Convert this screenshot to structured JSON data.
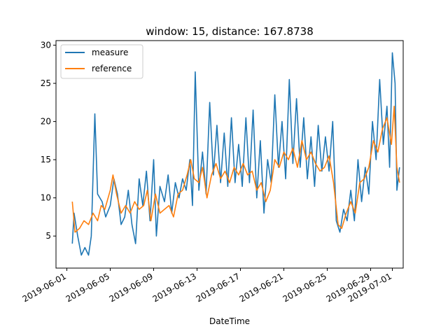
{
  "chart_data": {
    "type": "line",
    "title": "window: 15, distance: 167.8738",
    "xlabel": "DateTime",
    "ylabel": "",
    "x_range": [
      "2019-05-31",
      "2019-07-02"
    ],
    "ylim": [
      0.8,
      30.6
    ],
    "grid": false,
    "legend_position": "top-left",
    "x_ticks": [
      "2019-06-01",
      "2019-06-05",
      "2019-06-09",
      "2019-06-13",
      "2019-06-17",
      "2019-06-21",
      "2019-06-25",
      "2019-06-29",
      "2019-07-01"
    ],
    "y_ticks": [
      5,
      10,
      15,
      20,
      25,
      30
    ],
    "series": [
      {
        "name": "measure",
        "color": "#1f77b4",
        "points": [
          [
            "2019-06-01T12:00",
            4.0
          ],
          [
            "2019-06-01T16:00",
            8.0
          ],
          [
            "2019-06-02T00:00",
            5.0
          ],
          [
            "2019-06-02T08:00",
            2.5
          ],
          [
            "2019-06-02T16:00",
            3.5
          ],
          [
            "2019-06-03T00:00",
            2.5
          ],
          [
            "2019-06-03T06:00",
            5.0
          ],
          [
            "2019-06-03T14:00",
            21.0
          ],
          [
            "2019-06-03T20:00",
            10.5
          ],
          [
            "2019-06-04T06:00",
            9.5
          ],
          [
            "2019-06-04T14:00",
            7.5
          ],
          [
            "2019-06-05T00:00",
            9.0
          ],
          [
            "2019-06-05T08:00",
            12.5
          ],
          [
            "2019-06-05T16:00",
            10.5
          ],
          [
            "2019-06-06T00:00",
            6.5
          ],
          [
            "2019-06-06T08:00",
            7.5
          ],
          [
            "2019-06-06T16:00",
            11.0
          ],
          [
            "2019-06-07T00:00",
            6.5
          ],
          [
            "2019-06-07T08:00",
            4.0
          ],
          [
            "2019-06-07T16:00",
            12.5
          ],
          [
            "2019-06-08T00:00",
            9.0
          ],
          [
            "2019-06-08T08:00",
            13.5
          ],
          [
            "2019-06-08T16:00",
            7.0
          ],
          [
            "2019-06-09T00:00",
            15.0
          ],
          [
            "2019-06-09T06:00",
            5.0
          ],
          [
            "2019-06-09T14:00",
            11.5
          ],
          [
            "2019-06-10T00:00",
            9.5
          ],
          [
            "2019-06-10T08:00",
            13.0
          ],
          [
            "2019-06-10T16:00",
            8.0
          ],
          [
            "2019-06-11T00:00",
            12.0
          ],
          [
            "2019-06-11T08:00",
            10.0
          ],
          [
            "2019-06-11T16:00",
            12.5
          ],
          [
            "2019-06-12T00:00",
            11.0
          ],
          [
            "2019-06-12T08:00",
            15.0
          ],
          [
            "2019-06-12T14:00",
            9.0
          ],
          [
            "2019-06-12T20:00",
            26.5
          ],
          [
            "2019-06-13T04:00",
            11.0
          ],
          [
            "2019-06-13T12:00",
            16.0
          ],
          [
            "2019-06-13T20:00",
            10.5
          ],
          [
            "2019-06-14T04:00",
            22.5
          ],
          [
            "2019-06-14T12:00",
            13.0
          ],
          [
            "2019-06-14T20:00",
            19.5
          ],
          [
            "2019-06-15T04:00",
            12.0
          ],
          [
            "2019-06-15T12:00",
            18.5
          ],
          [
            "2019-06-15T20:00",
            11.5
          ],
          [
            "2019-06-16T04:00",
            20.5
          ],
          [
            "2019-06-16T12:00",
            12.0
          ],
          [
            "2019-06-16T20:00",
            17.0
          ],
          [
            "2019-06-17T04:00",
            11.5
          ],
          [
            "2019-06-17T12:00",
            20.5
          ],
          [
            "2019-06-17T20:00",
            12.0
          ],
          [
            "2019-06-18T04:00",
            21.5
          ],
          [
            "2019-06-18T12:00",
            10.0
          ],
          [
            "2019-06-18T20:00",
            17.5
          ],
          [
            "2019-06-19T04:00",
            8.0
          ],
          [
            "2019-06-19T12:00",
            15.0
          ],
          [
            "2019-06-19T20:00",
            12.0
          ],
          [
            "2019-06-20T04:00",
            23.5
          ],
          [
            "2019-06-20T12:00",
            14.0
          ],
          [
            "2019-06-20T20:00",
            20.0
          ],
          [
            "2019-06-21T04:00",
            12.5
          ],
          [
            "2019-06-21T12:00",
            25.5
          ],
          [
            "2019-06-21T20:00",
            14.5
          ],
          [
            "2019-06-22T04:00",
            23.0
          ],
          [
            "2019-06-22T12:00",
            14.0
          ],
          [
            "2019-06-22T20:00",
            20.5
          ],
          [
            "2019-06-23T04:00",
            12.5
          ],
          [
            "2019-06-23T12:00",
            18.0
          ],
          [
            "2019-06-23T20:00",
            11.5
          ],
          [
            "2019-06-24T04:00",
            19.5
          ],
          [
            "2019-06-24T12:00",
            13.5
          ],
          [
            "2019-06-24T20:00",
            18.0
          ],
          [
            "2019-06-25T04:00",
            13.5
          ],
          [
            "2019-06-25T12:00",
            20.0
          ],
          [
            "2019-06-25T20:00",
            7.0
          ],
          [
            "2019-06-26T04:00",
            5.5
          ],
          [
            "2019-06-26T12:00",
            8.5
          ],
          [
            "2019-06-26T20:00",
            7.0
          ],
          [
            "2019-06-27T04:00",
            11.0
          ],
          [
            "2019-06-27T12:00",
            7.0
          ],
          [
            "2019-06-27T20:00",
            15.0
          ],
          [
            "2019-06-28T04:00",
            9.5
          ],
          [
            "2019-06-28T12:00",
            14.0
          ],
          [
            "2019-06-28T20:00",
            10.5
          ],
          [
            "2019-06-29T04:00",
            20.0
          ],
          [
            "2019-06-29T12:00",
            15.0
          ],
          [
            "2019-06-29T20:00",
            25.5
          ],
          [
            "2019-06-30T04:00",
            17.0
          ],
          [
            "2019-06-30T12:00",
            22.0
          ],
          [
            "2019-06-30T18:00",
            14.0
          ],
          [
            "2019-07-01T00:00",
            29.0
          ],
          [
            "2019-07-01T06:00",
            25.0
          ],
          [
            "2019-07-01T10:00",
            11.0
          ],
          [
            "2019-07-01T16:00",
            14.0
          ]
        ]
      },
      {
        "name": "reference",
        "color": "#ff7f0e",
        "points": [
          [
            "2019-06-01T12:00",
            9.5
          ],
          [
            "2019-06-01T18:00",
            5.5
          ],
          [
            "2019-06-02T04:00",
            6.0
          ],
          [
            "2019-06-02T14:00",
            7.0
          ],
          [
            "2019-06-03T00:00",
            6.5
          ],
          [
            "2019-06-03T10:00",
            8.0
          ],
          [
            "2019-06-03T20:00",
            7.0
          ],
          [
            "2019-06-04T04:00",
            9.0
          ],
          [
            "2019-06-04T12:00",
            8.5
          ],
          [
            "2019-06-05T00:00",
            11.0
          ],
          [
            "2019-06-05T06:00",
            13.0
          ],
          [
            "2019-06-05T14:00",
            10.5
          ],
          [
            "2019-06-06T00:00",
            8.0
          ],
          [
            "2019-06-06T10:00",
            9.0
          ],
          [
            "2019-06-06T20:00",
            8.0
          ],
          [
            "2019-06-07T06:00",
            9.5
          ],
          [
            "2019-06-07T16:00",
            8.5
          ],
          [
            "2019-06-08T02:00",
            9.0
          ],
          [
            "2019-06-08T10:00",
            11.0
          ],
          [
            "2019-06-08T18:00",
            7.0
          ],
          [
            "2019-06-09T04:00",
            10.5
          ],
          [
            "2019-06-09T14:00",
            8.0
          ],
          [
            "2019-06-10T00:00",
            8.5
          ],
          [
            "2019-06-10T10:00",
            9.0
          ],
          [
            "2019-06-10T20:00",
            7.5
          ],
          [
            "2019-06-11T06:00",
            10.5
          ],
          [
            "2019-06-11T16:00",
            11.0
          ],
          [
            "2019-06-12T02:00",
            13.0
          ],
          [
            "2019-06-12T10:00",
            15.0
          ],
          [
            "2019-06-12T18:00",
            12.5
          ],
          [
            "2019-06-13T04:00",
            12.0
          ],
          [
            "2019-06-13T12:00",
            14.0
          ],
          [
            "2019-06-13T22:00",
            10.0
          ],
          [
            "2019-06-14T08:00",
            13.0
          ],
          [
            "2019-06-14T18:00",
            14.5
          ],
          [
            "2019-06-15T04:00",
            12.5
          ],
          [
            "2019-06-15T14:00",
            13.5
          ],
          [
            "2019-06-16T00:00",
            12.0
          ],
          [
            "2019-06-16T10:00",
            14.0
          ],
          [
            "2019-06-16T20:00",
            13.0
          ],
          [
            "2019-06-17T06:00",
            14.5
          ],
          [
            "2019-06-17T16:00",
            13.0
          ],
          [
            "2019-06-18T02:00",
            13.5
          ],
          [
            "2019-06-18T12:00",
            11.0
          ],
          [
            "2019-06-18T22:00",
            12.0
          ],
          [
            "2019-06-19T08:00",
            9.5
          ],
          [
            "2019-06-19T18:00",
            11.0
          ],
          [
            "2019-06-20T04:00",
            15.0
          ],
          [
            "2019-06-20T14:00",
            14.0
          ],
          [
            "2019-06-21T00:00",
            16.0
          ],
          [
            "2019-06-21T10:00",
            15.0
          ],
          [
            "2019-06-21T20:00",
            16.5
          ],
          [
            "2019-06-22T06:00",
            14.0
          ],
          [
            "2019-06-22T16:00",
            17.5
          ],
          [
            "2019-06-23T02:00",
            15.0
          ],
          [
            "2019-06-23T12:00",
            16.0
          ],
          [
            "2019-06-23T22:00",
            14.5
          ],
          [
            "2019-06-24T08:00",
            13.5
          ],
          [
            "2019-06-24T18:00",
            14.0
          ],
          [
            "2019-06-25T04:00",
            15.5
          ],
          [
            "2019-06-25T14:00",
            12.0
          ],
          [
            "2019-06-26T00:00",
            6.5
          ],
          [
            "2019-06-26T08:00",
            6.0
          ],
          [
            "2019-06-26T18:00",
            8.0
          ],
          [
            "2019-06-27T04:00",
            9.5
          ],
          [
            "2019-06-27T14:00",
            8.0
          ],
          [
            "2019-06-28T00:00",
            12.0
          ],
          [
            "2019-06-28T10:00",
            12.5
          ],
          [
            "2019-06-28T20:00",
            14.0
          ],
          [
            "2019-06-29T06:00",
            17.5
          ],
          [
            "2019-06-29T16:00",
            16.0
          ],
          [
            "2019-06-30T02:00",
            19.0
          ],
          [
            "2019-06-30T12:00",
            20.5
          ],
          [
            "2019-06-30T22:00",
            17.0
          ],
          [
            "2019-07-01T04:00",
            22.0
          ],
          [
            "2019-07-01T10:00",
            14.0
          ],
          [
            "2019-07-01T16:00",
            12.0
          ]
        ]
      }
    ]
  }
}
